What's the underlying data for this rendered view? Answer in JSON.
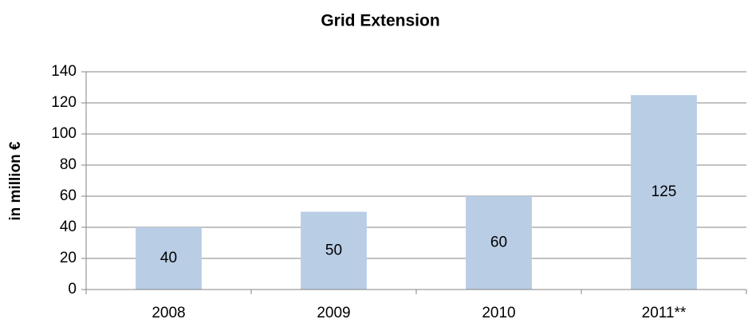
{
  "chart_data": {
    "type": "bar",
    "title": "Grid Extension",
    "y_label": "in million €",
    "categories": [
      "2008",
      "2009",
      "2010",
      "2011**"
    ],
    "values": [
      40,
      50,
      60,
      125
    ],
    "color": "#b9cde5",
    "ylim": [
      0,
      140
    ],
    "yticks": [
      0,
      20,
      40,
      60,
      80,
      100,
      120,
      140
    ],
    "grid": true
  }
}
